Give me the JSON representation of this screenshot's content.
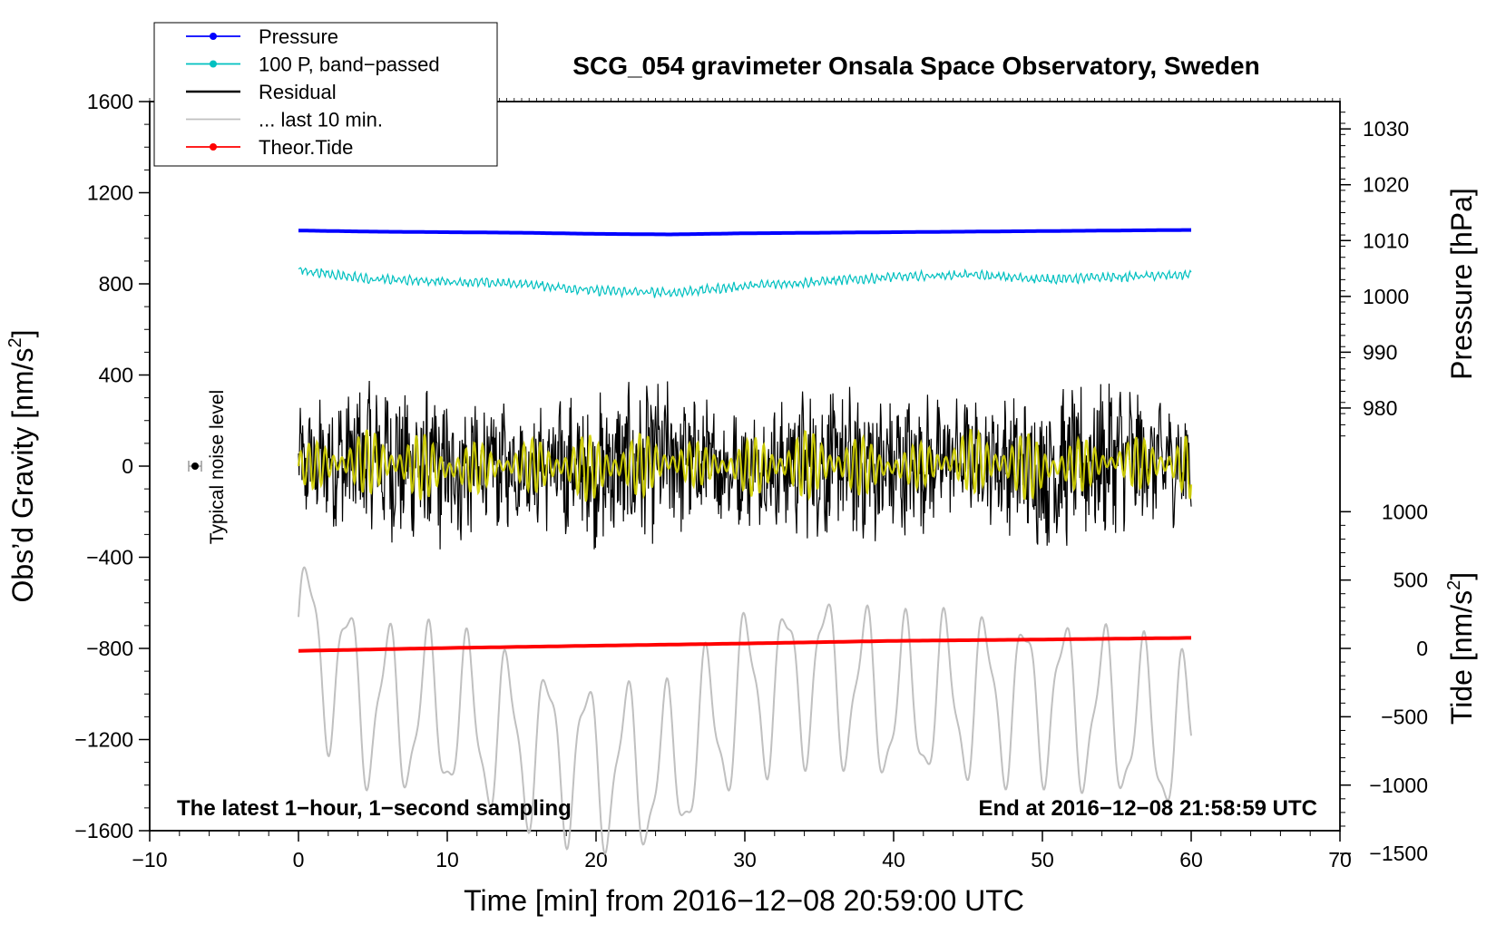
{
  "chart_data": {
    "type": "line",
    "title": "SCG_054 gravimeter Onsala Space Observatory, Sweden",
    "xlabel": "Time [min] from 2016−12−08 20:59:00 UTC",
    "ylabel_left": "Obs’d Gravity [nm/s",
    "ylabel_left_sup": "2",
    "ylabel_left_end": "]",
    "ylabel_right_top": "Pressure [hPa]",
    "ylabel_right_bottom": "Tide [nm/s",
    "ylabel_right_bottom_sup": "2",
    "ylabel_right_bottom_end": "]",
    "xlim": [
      -10,
      70
    ],
    "ylim_left": [
      -1600,
      1600
    ],
    "x_ticks": [
      -10,
      0,
      10,
      20,
      30,
      40,
      50,
      60,
      70
    ],
    "x_tick_labels": [
      "−10",
      "0",
      "10",
      "20",
      "30",
      "40",
      "50",
      "60",
      "70"
    ],
    "y_left_ticks": [
      1600,
      1200,
      800,
      400,
      0,
      -400,
      -800,
      -1200,
      -1600
    ],
    "y_left_tick_labels": [
      "1600",
      "1200",
      "800",
      "400",
      "0",
      "−400",
      "−800",
      "−1200",
      "−1600"
    ],
    "pressure_axis": {
      "ticks": [
        1030,
        1020,
        1010,
        1000,
        990,
        980
      ],
      "tick_labels": [
        "1030",
        "1020",
        "1010",
        "1000",
        "990",
        "980"
      ],
      "ref_value": 1030,
      "ref_gravity": 1480,
      "gravity_per_hpa": 24.5
    },
    "tide_axis": {
      "ticks": [
        1000,
        500,
        0,
        -500,
        -1000,
        -1500
      ],
      "tick_labels": [
        "1000",
        "500",
        "0",
        "−500",
        "−1000",
        "−1500"
      ],
      "ref_value": 0,
      "ref_gravity": -800,
      "gravity_per_unit": 0.6
    },
    "legend": [
      {
        "name": "Pressure",
        "color": "#0000ff",
        "marker": true
      },
      {
        "name": "100 P, band−passed",
        "color": "#00c0c0",
        "marker": true
      },
      {
        "name": "Residual",
        "color": "#000000",
        "marker": false
      },
      {
        "name": "... last 10 min.",
        "color": "#c0c0c0",
        "marker": false
      },
      {
        "name": "Theor.Tide",
        "color": "#ff0000",
        "marker": true
      }
    ],
    "annotations": {
      "noise_label": "Typical noise level",
      "left_note": "The latest 1−hour, 1−second sampling",
      "right_note": "End at 2016−12−08 21:58:59 UTC"
    },
    "noise_marker": {
      "x": -7,
      "y": 0,
      "err": 25
    },
    "series": [
      {
        "name": "Pressure",
        "color": "#0000ff",
        "unit": "hPa",
        "x": [
          0,
          5,
          10,
          15,
          20,
          25,
          30,
          35,
          40,
          45,
          50,
          55,
          60
        ],
        "values": [
          1011.8,
          1011.6,
          1011.5,
          1011.4,
          1011.2,
          1011.1,
          1011.3,
          1011.4,
          1011.5,
          1011.6,
          1011.7,
          1011.8,
          1011.9
        ]
      },
      {
        "name": "100 P, band−passed",
        "color": "#00c0c0",
        "unit": "nm/s2",
        "x": [
          0,
          5,
          10,
          15,
          20,
          25,
          30,
          35,
          40,
          45,
          50,
          55,
          60
        ],
        "values": [
          860,
          820,
          810,
          800,
          770,
          760,
          790,
          810,
          830,
          840,
          820,
          830,
          840
        ]
      },
      {
        "name": "Residual",
        "color": "#000000",
        "unit": "nm/s2",
        "x": [
          0,
          5,
          10,
          15,
          20,
          25,
          30,
          35,
          40,
          45,
          50,
          55,
          60
        ],
        "values": [
          0,
          40,
          -30,
          10,
          -20,
          30,
          -10,
          20,
          -15,
          50,
          -20,
          40,
          0
        ]
      },
      {
        "name": "Residual filtered",
        "color": "#d4d400",
        "unit": "nm/s2",
        "x": [
          0,
          5,
          10,
          15,
          20,
          25,
          30,
          35,
          40,
          45,
          50,
          55,
          60
        ],
        "values": [
          0,
          20,
          -15,
          5,
          -10,
          15,
          -5,
          10,
          -8,
          25,
          -10,
          20,
          0
        ]
      },
      {
        "name": "... last 10 min.",
        "color": "#c0c0c0",
        "unit": "nm/s2",
        "x": [
          0,
          5,
          10,
          15,
          20,
          25,
          30,
          35,
          40,
          45,
          50,
          55,
          60
        ],
        "values": [
          -720,
          -1050,
          -1100,
          -1200,
          -1300,
          -1350,
          -1000,
          -900,
          -1050,
          -1020,
          -1000,
          -1100,
          -1220
        ]
      },
      {
        "name": "Theor.Tide",
        "color": "#ff0000",
        "unit": "nm/s2",
        "x": [
          0,
          10,
          20,
          30,
          40,
          50,
          60
        ],
        "values": [
          -18,
          3,
          20,
          36,
          55,
          65,
          77
        ]
      }
    ]
  }
}
